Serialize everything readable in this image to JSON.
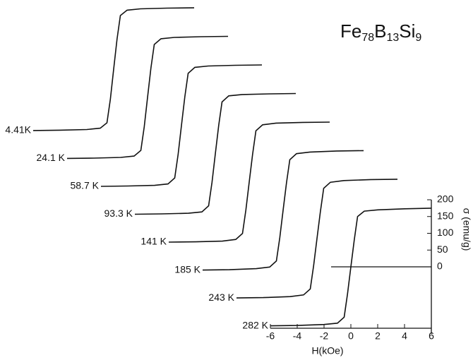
{
  "chart_data": {
    "type": "line",
    "title": [
      "Fe",
      "78",
      "B",
      "13",
      "Si",
      "9"
    ],
    "x_label": "H(kOe)",
    "y_label": "σ (emu/g)",
    "x": [
      -6,
      -4,
      -2,
      -1,
      -0.5,
      -0.25,
      0,
      0.25,
      0.5,
      1,
      2,
      4,
      6
    ],
    "series": [
      {
        "name": "4.41K",
        "color": "#111",
        "values": [
          -183,
          -182,
          -180,
          -176,
          -160,
          -90,
          0,
          90,
          160,
          176,
          180,
          182,
          183
        ]
      },
      {
        "name": "24.1 K",
        "color": "#111",
        "values": [
          -182,
          -181,
          -179,
          -175,
          -158,
          -88,
          0,
          88,
          158,
          175,
          179,
          181,
          182
        ]
      },
      {
        "name": "58.7 K",
        "color": "#111",
        "values": [
          -181,
          -180,
          -178,
          -174,
          -156,
          -86,
          0,
          86,
          156,
          174,
          178,
          180,
          181
        ]
      },
      {
        "name": "93.3 K",
        "color": "#111",
        "values": [
          -180,
          -179,
          -177,
          -173,
          -155,
          -85,
          0,
          85,
          155,
          173,
          177,
          179,
          180
        ]
      },
      {
        "name": "141 K",
        "color": "#111",
        "values": [
          -179,
          -178,
          -176,
          -171,
          -153,
          -83,
          0,
          83,
          153,
          171,
          176,
          178,
          179
        ]
      },
      {
        "name": "185 K",
        "color": "#111",
        "values": [
          -178,
          -177,
          -174,
          -169,
          -151,
          -82,
          0,
          82,
          151,
          169,
          174,
          177,
          178
        ]
      },
      {
        "name": "243 K",
        "color": "#111",
        "values": [
          -177,
          -176,
          -173,
          -168,
          -150,
          -80,
          0,
          80,
          150,
          168,
          173,
          176,
          177
        ]
      },
      {
        "name": "282 K",
        "color": "#111",
        "values": [
          -176,
          -175,
          -172,
          -168,
          -150,
          -80,
          0,
          80,
          150,
          166,
          170,
          173,
          175
        ]
      }
    ],
    "xlim": [
      -6,
      6
    ],
    "xticks": [
      -6,
      -4,
      -2,
      0,
      2,
      4,
      6
    ],
    "ylim": [
      -200,
      200
    ],
    "yticks": [
      0,
      50,
      100,
      150,
      200
    ]
  }
}
